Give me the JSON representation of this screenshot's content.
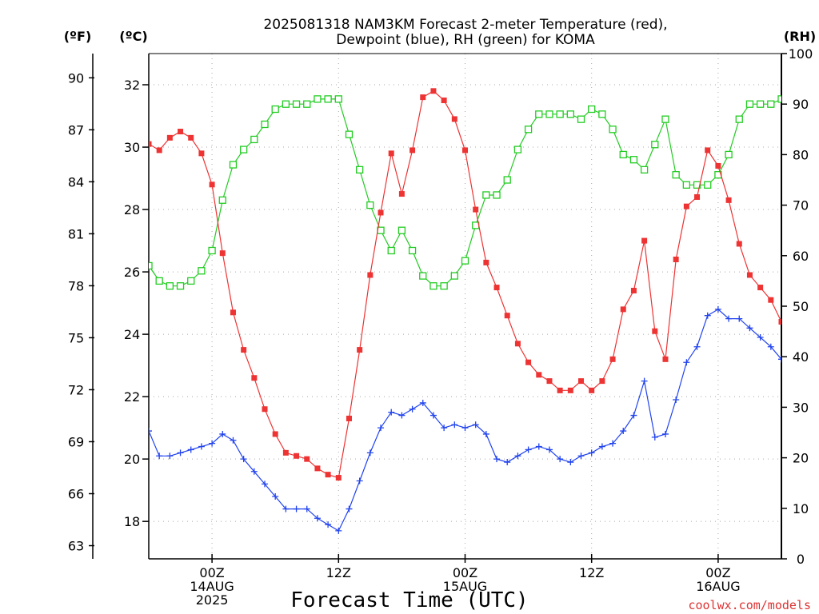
{
  "chart_data": {
    "type": "line",
    "title_line1": "2025081318 NAM3KM Forecast 2-meter Temperature (red),",
    "title_line2": "Dewpoint (blue), RH (green) for KOMA",
    "xlabel": "Forecast Time (UTC)",
    "watermark": "coolwx.com/models",
    "unit_labels": {
      "fahrenheit": "(ºF)",
      "celsius": "(ºC)",
      "rh": "(RH)"
    },
    "x_unit": "hours since 2025-08-13 18Z",
    "xlim": [
      -6,
      54
    ],
    "x_ticks": [
      {
        "x": 0,
        "lines": [
          "00Z",
          "14AUG",
          "2025"
        ]
      },
      {
        "x": 12,
        "lines": [
          "12Z"
        ]
      },
      {
        "x": 24,
        "lines": [
          "00Z",
          "15AUG"
        ]
      },
      {
        "x": 36,
        "lines": [
          "12Z"
        ]
      },
      {
        "x": 48,
        "lines": [
          "00Z",
          "16AUG"
        ]
      }
    ],
    "ylim_c": [
      16.8,
      33.0
    ],
    "yticks_c": [
      "18",
      "20",
      "22",
      "24",
      "26",
      "28",
      "30",
      "32"
    ],
    "yticks_f": [
      "63",
      "66",
      "69",
      "72",
      "75",
      "78",
      "81",
      "84",
      "87",
      "90"
    ],
    "ylim_rh": [
      0,
      100
    ],
    "yticks_rh": [
      "0",
      "10",
      "20",
      "30",
      "40",
      "50",
      "60",
      "70",
      "80",
      "90",
      "100"
    ],
    "grid": true,
    "colors": {
      "temperature": "#ee3333",
      "dewpoint": "#2244ee",
      "rh": "#22cc22",
      "watermark": "#dd3333"
    },
    "x": [
      -6,
      -5,
      -4,
      -3,
      -2,
      -1,
      0,
      1,
      2,
      3,
      4,
      5,
      6,
      7,
      8,
      9,
      10,
      11,
      12,
      13,
      14,
      15,
      16,
      17,
      18,
      19,
      20,
      21,
      22,
      23,
      24,
      25,
      26,
      27,
      28,
      29,
      30,
      31,
      32,
      33,
      34,
      35,
      36,
      37,
      38,
      39,
      40,
      41,
      42,
      43,
      44,
      45,
      46,
      47,
      48,
      49,
      50,
      51,
      52,
      53,
      54
    ],
    "series": [
      {
        "name": "Temperature",
        "unit": "C",
        "values": [
          30.1,
          29.9,
          30.3,
          30.5,
          30.3,
          29.8,
          28.8,
          26.6,
          24.7,
          23.5,
          22.6,
          21.6,
          20.8,
          20.2,
          20.1,
          20.0,
          19.7,
          19.5,
          19.4,
          21.3,
          23.5,
          25.9,
          27.9,
          29.8,
          28.5,
          29.9,
          31.6,
          31.8,
          31.5,
          30.9,
          29.9,
          28.0,
          26.3,
          25.5,
          24.6,
          23.7,
          23.1,
          22.7,
          22.5,
          22.2,
          22.2,
          22.5,
          22.2,
          22.5,
          23.2,
          24.8,
          25.4,
          27.0,
          24.1,
          23.2,
          26.4,
          28.1,
          28.4,
          29.9,
          29.4,
          28.3,
          26.9,
          25.9,
          25.5,
          25.1,
          24.4
        ]
      },
      {
        "name": "Dewpoint",
        "unit": "C",
        "values": [
          20.9,
          20.1,
          20.1,
          20.2,
          20.3,
          20.4,
          20.5,
          20.8,
          20.6,
          20.0,
          19.6,
          19.2,
          18.8,
          18.4,
          18.4,
          18.4,
          18.1,
          17.9,
          17.7,
          18.4,
          19.3,
          20.2,
          21.0,
          21.5,
          21.4,
          21.6,
          21.8,
          21.4,
          21.0,
          21.1,
          21.0,
          21.1,
          20.8,
          20.0,
          19.9,
          20.1,
          20.3,
          20.4,
          20.3,
          20.0,
          19.9,
          20.1,
          20.2,
          20.4,
          20.5,
          20.9,
          21.4,
          22.5,
          20.7,
          20.8,
          21.9,
          23.1,
          23.6,
          24.6,
          24.8,
          24.5,
          24.5,
          24.2,
          23.9,
          23.6,
          23.2
        ]
      },
      {
        "name": "RH",
        "unit": "%",
        "values": [
          58,
          55,
          54,
          54,
          55,
          57,
          61,
          71,
          78,
          81,
          83,
          86,
          89,
          90,
          90,
          90,
          91,
          91,
          91,
          84,
          77,
          70,
          65,
          61,
          65,
          61,
          56,
          54,
          54,
          56,
          59,
          66,
          72,
          72,
          75,
          81,
          85,
          88,
          88,
          88,
          88,
          87,
          89,
          88,
          85,
          80,
          79,
          77,
          82,
          87,
          76,
          74,
          74,
          74,
          76,
          80,
          87,
          90,
          90,
          90,
          91
        ]
      }
    ]
  }
}
